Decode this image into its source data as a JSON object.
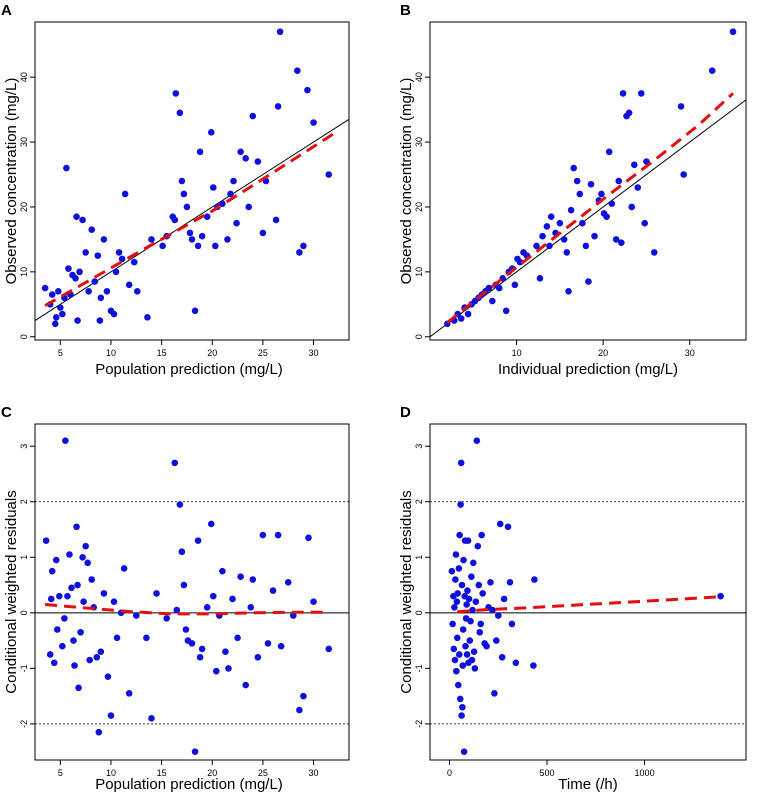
{
  "chart_data": [
    {
      "panel": "A",
      "type": "scatter",
      "xlabel": "Population prediction (mg/L)",
      "ylabel": "Observed concentration (mg/L)",
      "xlim": [
        2.5,
        33.5
      ],
      "ylim": [
        -0.5,
        48.5
      ],
      "xticks": [
        5,
        10,
        15,
        20,
        25,
        30
      ],
      "yticks": [
        0,
        10,
        20,
        30,
        40
      ],
      "ref_line": {
        "kind": "identity"
      },
      "points": [
        [
          3.5,
          7.5
        ],
        [
          4.0,
          5.0
        ],
        [
          4.2,
          6.5
        ],
        [
          4.5,
          2.0
        ],
        [
          4.6,
          3.0
        ],
        [
          4.8,
          7.0
        ],
        [
          5.0,
          4.5
        ],
        [
          5.2,
          3.5
        ],
        [
          5.4,
          6.0
        ],
        [
          5.6,
          26.0
        ],
        [
          5.8,
          10.5
        ],
        [
          6.0,
          6.5
        ],
        [
          6.2,
          9.5
        ],
        [
          6.5,
          9.0
        ],
        [
          6.6,
          18.5
        ],
        [
          6.7,
          2.5
        ],
        [
          6.9,
          10.0
        ],
        [
          7.2,
          18.0
        ],
        [
          7.5,
          13.0
        ],
        [
          7.8,
          7.0
        ],
        [
          8.1,
          16.5
        ],
        [
          8.4,
          8.5
        ],
        [
          8.7,
          12.5
        ],
        [
          8.9,
          2.5
        ],
        [
          9.0,
          6.0
        ],
        [
          9.3,
          15.0
        ],
        [
          9.6,
          7.0
        ],
        [
          10.0,
          4.0
        ],
        [
          10.3,
          3.5
        ],
        [
          10.5,
          10.0
        ],
        [
          10.8,
          13.0
        ],
        [
          11.1,
          12.0
        ],
        [
          11.4,
          22.0
        ],
        [
          11.8,
          8.0
        ],
        [
          12.3,
          11.5
        ],
        [
          12.6,
          7.0
        ],
        [
          13.6,
          3.0
        ],
        [
          14.0,
          15.0
        ],
        [
          15.1,
          14.0
        ],
        [
          15.5,
          15.5
        ],
        [
          16.1,
          18.5
        ],
        [
          16.3,
          18.0
        ],
        [
          16.4,
          37.5
        ],
        [
          16.8,
          34.5
        ],
        [
          17.0,
          24.0
        ],
        [
          17.2,
          22.0
        ],
        [
          17.5,
          20.0
        ],
        [
          17.8,
          16.0
        ],
        [
          18.0,
          15.0
        ],
        [
          18.3,
          4.0
        ],
        [
          18.6,
          14.0
        ],
        [
          18.8,
          28.5
        ],
        [
          19.0,
          15.5
        ],
        [
          19.5,
          18.5
        ],
        [
          19.9,
          31.5
        ],
        [
          20.1,
          23.0
        ],
        [
          20.3,
          14.0
        ],
        [
          20.5,
          20.0
        ],
        [
          21.0,
          20.5
        ],
        [
          21.5,
          15.0
        ],
        [
          21.8,
          22.0
        ],
        [
          22.1,
          24.0
        ],
        [
          22.4,
          17.5
        ],
        [
          22.8,
          28.5
        ],
        [
          23.3,
          27.5
        ],
        [
          23.6,
          20.0
        ],
        [
          24.0,
          34.0
        ],
        [
          24.5,
          27.0
        ],
        [
          25.0,
          16.0
        ],
        [
          25.3,
          24.0
        ],
        [
          26.3,
          18.0
        ],
        [
          26.5,
          35.5
        ],
        [
          26.7,
          47.0
        ],
        [
          28.4,
          41.0
        ],
        [
          28.6,
          13.0
        ],
        [
          29.0,
          14.0
        ],
        [
          29.4,
          38.0
        ],
        [
          30.0,
          33.0
        ],
        [
          31.5,
          25.0
        ]
      ],
      "trend": [
        [
          3.5,
          4.8
        ],
        [
          8,
          8.8
        ],
        [
          12,
          12.4
        ],
        [
          16,
          15.9
        ],
        [
          20,
          19.4
        ],
        [
          24,
          23.3
        ],
        [
          28,
          27.3
        ],
        [
          32,
          31.3
        ]
      ]
    },
    {
      "panel": "B",
      "type": "scatter",
      "xlabel": "Individual prediction (mg/L)",
      "ylabel": "Observed concentration (mg/L)",
      "xlim": [
        0,
        36.5
      ],
      "ylim": [
        -0.5,
        48.5
      ],
      "xticks": [
        10,
        20,
        30
      ],
      "yticks": [
        0,
        10,
        20,
        30,
        40
      ],
      "ref_line": {
        "kind": "identity"
      },
      "points": [
        [
          2.0,
          2.0
        ],
        [
          2.8,
          2.5
        ],
        [
          3.2,
          3.5
        ],
        [
          3.6,
          2.8
        ],
        [
          4.0,
          4.5
        ],
        [
          4.4,
          3.5
        ],
        [
          4.8,
          5.0
        ],
        [
          5.2,
          5.5
        ],
        [
          5.6,
          6.0
        ],
        [
          6.0,
          6.5
        ],
        [
          6.4,
          7.0
        ],
        [
          6.8,
          7.5
        ],
        [
          7.2,
          5.5
        ],
        [
          7.6,
          8.0
        ],
        [
          8.0,
          7.5
        ],
        [
          8.4,
          9.0
        ],
        [
          8.8,
          4.0
        ],
        [
          9.1,
          10.0
        ],
        [
          9.5,
          10.5
        ],
        [
          9.8,
          8.0
        ],
        [
          10.1,
          12.0
        ],
        [
          10.4,
          11.5
        ],
        [
          10.8,
          13.0
        ],
        [
          11.2,
          12.5
        ],
        [
          12.3,
          14.0
        ],
        [
          12.7,
          9.0
        ],
        [
          13.0,
          15.5
        ],
        [
          13.5,
          17.0
        ],
        [
          13.8,
          14.0
        ],
        [
          14.0,
          18.5
        ],
        [
          14.5,
          16.0
        ],
        [
          15.0,
          17.5
        ],
        [
          15.5,
          15.0
        ],
        [
          15.8,
          13.0
        ],
        [
          16.0,
          7.0
        ],
        [
          16.3,
          19.5
        ],
        [
          16.6,
          26.0
        ],
        [
          17.0,
          24.0
        ],
        [
          17.3,
          22.0
        ],
        [
          17.6,
          17.5
        ],
        [
          18.0,
          14.0
        ],
        [
          18.3,
          8.5
        ],
        [
          18.6,
          23.5
        ],
        [
          19.0,
          15.5
        ],
        [
          19.5,
          21.0
        ],
        [
          19.8,
          22.0
        ],
        [
          20.1,
          19.0
        ],
        [
          20.4,
          18.5
        ],
        [
          20.7,
          28.5
        ],
        [
          21.0,
          20.5
        ],
        [
          21.5,
          15.0
        ],
        [
          21.8,
          24.0
        ],
        [
          22.1,
          14.5
        ],
        [
          22.3,
          37.5
        ],
        [
          22.7,
          34.0
        ],
        [
          23.0,
          34.5
        ],
        [
          23.3,
          20.0
        ],
        [
          23.6,
          26.5
        ],
        [
          24.0,
          23.0
        ],
        [
          24.4,
          37.5
        ],
        [
          24.8,
          17.5
        ],
        [
          25.0,
          27.0
        ],
        [
          25.9,
          13.0
        ],
        [
          29.0,
          35.5
        ],
        [
          29.3,
          25.0
        ],
        [
          32.6,
          41.0
        ],
        [
          35.0,
          47.0
        ]
      ],
      "trend": [
        [
          2,
          2.2
        ],
        [
          8,
          8.6
        ],
        [
          14,
          14.9
        ],
        [
          20,
          21.2
        ],
        [
          26,
          27.3
        ],
        [
          31,
          32.6
        ],
        [
          35,
          37.5
        ]
      ]
    },
    {
      "panel": "C",
      "type": "scatter",
      "xlabel": "Population prediction (mg/L)",
      "ylabel": "Conditional weighted residuals",
      "xlim": [
        2.5,
        33.5
      ],
      "ylim": [
        -2.65,
        3.4
      ],
      "xticks": [
        5,
        10,
        15,
        20,
        25,
        30
      ],
      "yticks": [
        -2,
        -1,
        0,
        1,
        2,
        3
      ],
      "ref_line": {
        "kind": "horizontal",
        "y": 0
      },
      "dotted_lines": [
        -2,
        2
      ],
      "points": [
        [
          3.6,
          1.3
        ],
        [
          4.0,
          -0.75
        ],
        [
          4.1,
          0.25
        ],
        [
          4.2,
          0.75
        ],
        [
          4.4,
          -0.9
        ],
        [
          4.6,
          0.95
        ],
        [
          4.7,
          -0.3
        ],
        [
          4.9,
          0.3
        ],
        [
          5.2,
          -0.6
        ],
        [
          5.4,
          -0.1
        ],
        [
          5.5,
          3.1
        ],
        [
          5.7,
          0.3
        ],
        [
          5.9,
          1.05
        ],
        [
          6.1,
          0.45
        ],
        [
          6.3,
          -0.5
        ],
        [
          6.4,
          -0.95
        ],
        [
          6.6,
          1.55
        ],
        [
          6.7,
          0.5
        ],
        [
          6.8,
          -1.35
        ],
        [
          7.0,
          -0.35
        ],
        [
          7.2,
          1.0
        ],
        [
          7.3,
          0.2
        ],
        [
          7.5,
          1.2
        ],
        [
          7.7,
          0.9
        ],
        [
          7.9,
          -0.85
        ],
        [
          8.1,
          0.6
        ],
        [
          8.3,
          0.1
        ],
        [
          8.6,
          -0.8
        ],
        [
          8.8,
          -2.15
        ],
        [
          9.0,
          -0.7
        ],
        [
          9.3,
          0.35
        ],
        [
          9.7,
          -1.15
        ],
        [
          10.0,
          -1.85
        ],
        [
          10.3,
          0.2
        ],
        [
          10.6,
          -0.45
        ],
        [
          11.0,
          0.0
        ],
        [
          11.3,
          0.8
        ],
        [
          11.8,
          -1.45
        ],
        [
          12.5,
          -0.05
        ],
        [
          13.5,
          -0.45
        ],
        [
          14.0,
          -1.9
        ],
        [
          14.5,
          0.35
        ],
        [
          15.5,
          -0.1
        ],
        [
          16.3,
          2.7
        ],
        [
          16.5,
          0.05
        ],
        [
          16.8,
          1.95
        ],
        [
          17.0,
          1.1
        ],
        [
          17.2,
          0.5
        ],
        [
          17.4,
          -0.3
        ],
        [
          17.6,
          -0.5
        ],
        [
          18.0,
          -0.55
        ],
        [
          18.3,
          -2.5
        ],
        [
          18.6,
          1.3
        ],
        [
          18.8,
          -0.8
        ],
        [
          19.0,
          -0.65
        ],
        [
          19.5,
          0.1
        ],
        [
          19.9,
          1.6
        ],
        [
          20.1,
          0.3
        ],
        [
          20.4,
          -1.05
        ],
        [
          20.7,
          -0.05
        ],
        [
          21.0,
          0.75
        ],
        [
          21.3,
          -0.7
        ],
        [
          21.6,
          -1.0
        ],
        [
          22.0,
          0.25
        ],
        [
          22.5,
          -0.45
        ],
        [
          22.8,
          0.65
        ],
        [
          23.3,
          -1.3
        ],
        [
          23.8,
          0.1
        ],
        [
          24.0,
          0.6
        ],
        [
          24.5,
          -0.8
        ],
        [
          25.0,
          1.4
        ],
        [
          25.5,
          -0.55
        ],
        [
          26.0,
          0.4
        ],
        [
          26.5,
          1.4
        ],
        [
          26.8,
          -0.6
        ],
        [
          27.5,
          0.55
        ],
        [
          28.0,
          -0.05
        ],
        [
          28.6,
          -1.75
        ],
        [
          29.0,
          -1.5
        ],
        [
          29.5,
          1.35
        ],
        [
          30.0,
          0.2
        ],
        [
          31.5,
          -0.65
        ]
      ],
      "trend": [
        [
          3.5,
          0.15
        ],
        [
          8,
          0.08
        ],
        [
          12,
          0.02
        ],
        [
          16,
          -0.02
        ],
        [
          20,
          -0.02
        ],
        [
          24,
          0.0
        ],
        [
          28,
          0.01
        ],
        [
          31.5,
          0.01
        ]
      ]
    },
    {
      "panel": "D",
      "type": "scatter",
      "xlabel": "Time (/h)",
      "ylabel": "Conditional weighted residuals",
      "xlim": [
        -100,
        1520
      ],
      "ylim": [
        -2.65,
        3.4
      ],
      "xticks": [
        0,
        500,
        1000
      ],
      "yticks": [
        -2,
        -1,
        0,
        1,
        2,
        3
      ],
      "ref_line": {
        "kind": "horizontal",
        "y": 0
      },
      "dotted_lines": [
        -2,
        2
      ],
      "points": [
        [
          12,
          0.75
        ],
        [
          16,
          -0.2
        ],
        [
          20,
          0.3
        ],
        [
          22,
          -0.65
        ],
        [
          25,
          0.1
        ],
        [
          28,
          -0.85
        ],
        [
          30,
          0.6
        ],
        [
          33,
          1.05
        ],
        [
          35,
          -1.05
        ],
        [
          38,
          0.2
        ],
        [
          40,
          -0.45
        ],
        [
          42,
          0.35
        ],
        [
          45,
          -1.3
        ],
        [
          48,
          0.8
        ],
        [
          50,
          -0.75
        ],
        [
          52,
          1.4
        ],
        [
          55,
          -1.55
        ],
        [
          57,
          1.95
        ],
        [
          60,
          2.7
        ],
        [
          62,
          -1.85
        ],
        [
          64,
          0.5
        ],
        [
          66,
          -1.7
        ],
        [
          68,
          -0.95
        ],
        [
          70,
          -0.3
        ],
        [
          72,
          0.95
        ],
        [
          75,
          -2.5
        ],
        [
          78,
          0.3
        ],
        [
          80,
          1.3
        ],
        [
          82,
          -0.6
        ],
        [
          85,
          -0.1
        ],
        [
          88,
          0.15
        ],
        [
          90,
          -0.75
        ],
        [
          92,
          0.4
        ],
        [
          95,
          1.3
        ],
        [
          97,
          -0.9
        ],
        [
          100,
          0.25
        ],
        [
          104,
          -0.5
        ],
        [
          108,
          -0.15
        ],
        [
          112,
          0.65
        ],
        [
          115,
          -0.85
        ],
        [
          118,
          0.05
        ],
        [
          122,
          0.9
        ],
        [
          126,
          -0.7
        ],
        [
          130,
          -1.0
        ],
        [
          135,
          0.2
        ],
        [
          140,
          3.1
        ],
        [
          145,
          1.2
        ],
        [
          150,
          0.5
        ],
        [
          155,
          -0.35
        ],
        [
          160,
          -0.2
        ],
        [
          165,
          1.4
        ],
        [
          170,
          0.35
        ],
        [
          180,
          -0.55
        ],
        [
          190,
          -0.6
        ],
        [
          200,
          0.1
        ],
        [
          210,
          0.55
        ],
        [
          220,
          0.05
        ],
        [
          230,
          -1.45
        ],
        [
          240,
          -0.5
        ],
        [
          250,
          -0.05
        ],
        [
          260,
          1.6
        ],
        [
          270,
          -0.8
        ],
        [
          280,
          0.25
        ],
        [
          300,
          1.55
        ],
        [
          310,
          0.55
        ],
        [
          320,
          -0.2
        ],
        [
          340,
          -0.9
        ],
        [
          430,
          -0.95
        ],
        [
          435,
          0.6
        ],
        [
          1390,
          0.3
        ]
      ],
      "trend": [
        [
          40,
          0.02
        ],
        [
          200,
          0.06
        ],
        [
          400,
          0.09
        ],
        [
          600,
          0.13
        ],
        [
          800,
          0.17
        ],
        [
          1000,
          0.21
        ],
        [
          1200,
          0.25
        ],
        [
          1390,
          0.29
        ]
      ]
    }
  ]
}
